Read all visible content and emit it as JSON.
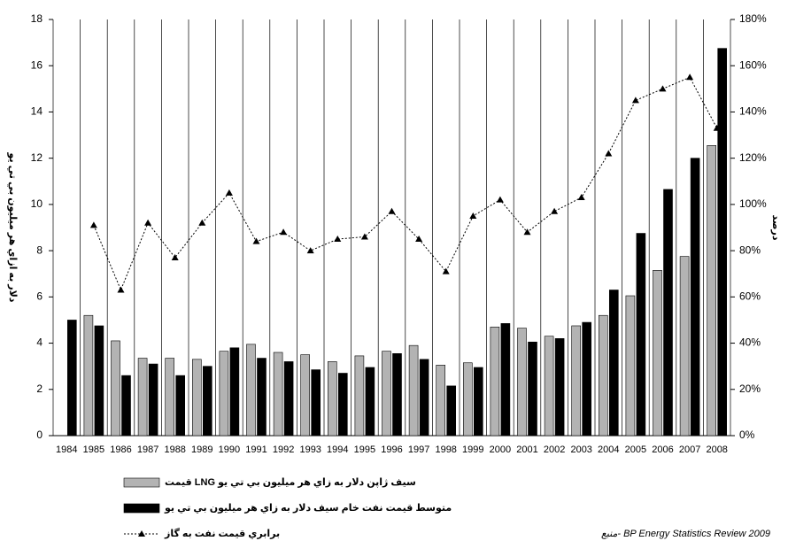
{
  "chart_data": {
    "type": "bar-line",
    "y_label": "دلار به ازاي هر ميليون بي تي يو",
    "y2_label": "درصد",
    "source": "منبع- BP Energy Statistics Review 2009",
    "categories": [
      "1984",
      "1985",
      "1986",
      "1987",
      "1988",
      "1989",
      "1990",
      "1991",
      "1992",
      "1993",
      "1994",
      "1995",
      "1996",
      "1997",
      "1998",
      "1999",
      "2000",
      "2001",
      "2002",
      "2003",
      "2004",
      "2005",
      "2006",
      "2007",
      "2008"
    ],
    "series": [
      {
        "name": "قيمت LNG سيف ژاپن دلار به زاي هر ميليون بي تي يو",
        "type": "bar",
        "color": "#b3b3b3",
        "values": [
          null,
          5.2,
          4.1,
          3.35,
          3.35,
          3.3,
          3.65,
          3.95,
          3.6,
          3.5,
          3.2,
          3.45,
          3.65,
          3.9,
          3.05,
          3.15,
          4.7,
          4.65,
          4.3,
          4.75,
          5.2,
          6.05,
          7.15,
          7.75,
          12.55
        ]
      },
      {
        "name": "متوسط قيمت نفت خام سيف دلار به زاي هر ميليون بي تي يو",
        "type": "bar",
        "color": "#000000",
        "values": [
          5.0,
          4.75,
          2.6,
          3.1,
          2.6,
          3.0,
          3.8,
          3.35,
          3.2,
          2.85,
          2.7,
          2.95,
          3.55,
          3.3,
          2.15,
          2.95,
          4.85,
          4.05,
          4.2,
          4.9,
          6.3,
          8.75,
          10.65,
          12.0,
          16.75
        ]
      },
      {
        "name": "برابري قيمت نفت به گاز",
        "type": "line",
        "axis": "y2",
        "color": "#000000",
        "values": [
          null,
          91,
          63,
          92,
          77,
          92,
          105,
          84,
          88,
          80,
          85,
          86,
          97,
          85,
          71,
          95,
          102,
          88,
          97,
          103,
          122,
          145,
          150,
          155,
          133
        ]
      }
    ],
    "ylim": [
      0,
      18
    ],
    "yticks": [
      0,
      2,
      4,
      6,
      8,
      10,
      12,
      14,
      16,
      18
    ],
    "y2lim": [
      0,
      180
    ],
    "y2ticks": [
      {
        "value": 0,
        "label": "0%"
      },
      {
        "value": 20,
        "label": "20%"
      },
      {
        "value": 40,
        "label": "40%"
      },
      {
        "value": 60,
        "label": "60%"
      },
      {
        "value": 80,
        "label": "80%"
      },
      {
        "value": 100,
        "label": "100%"
      },
      {
        "value": 120,
        "label": "120%"
      },
      {
        "value": 140,
        "label": "140%"
      },
      {
        "value": 160,
        "label": "160%"
      },
      {
        "value": 180,
        "label": "180%"
      }
    ]
  }
}
